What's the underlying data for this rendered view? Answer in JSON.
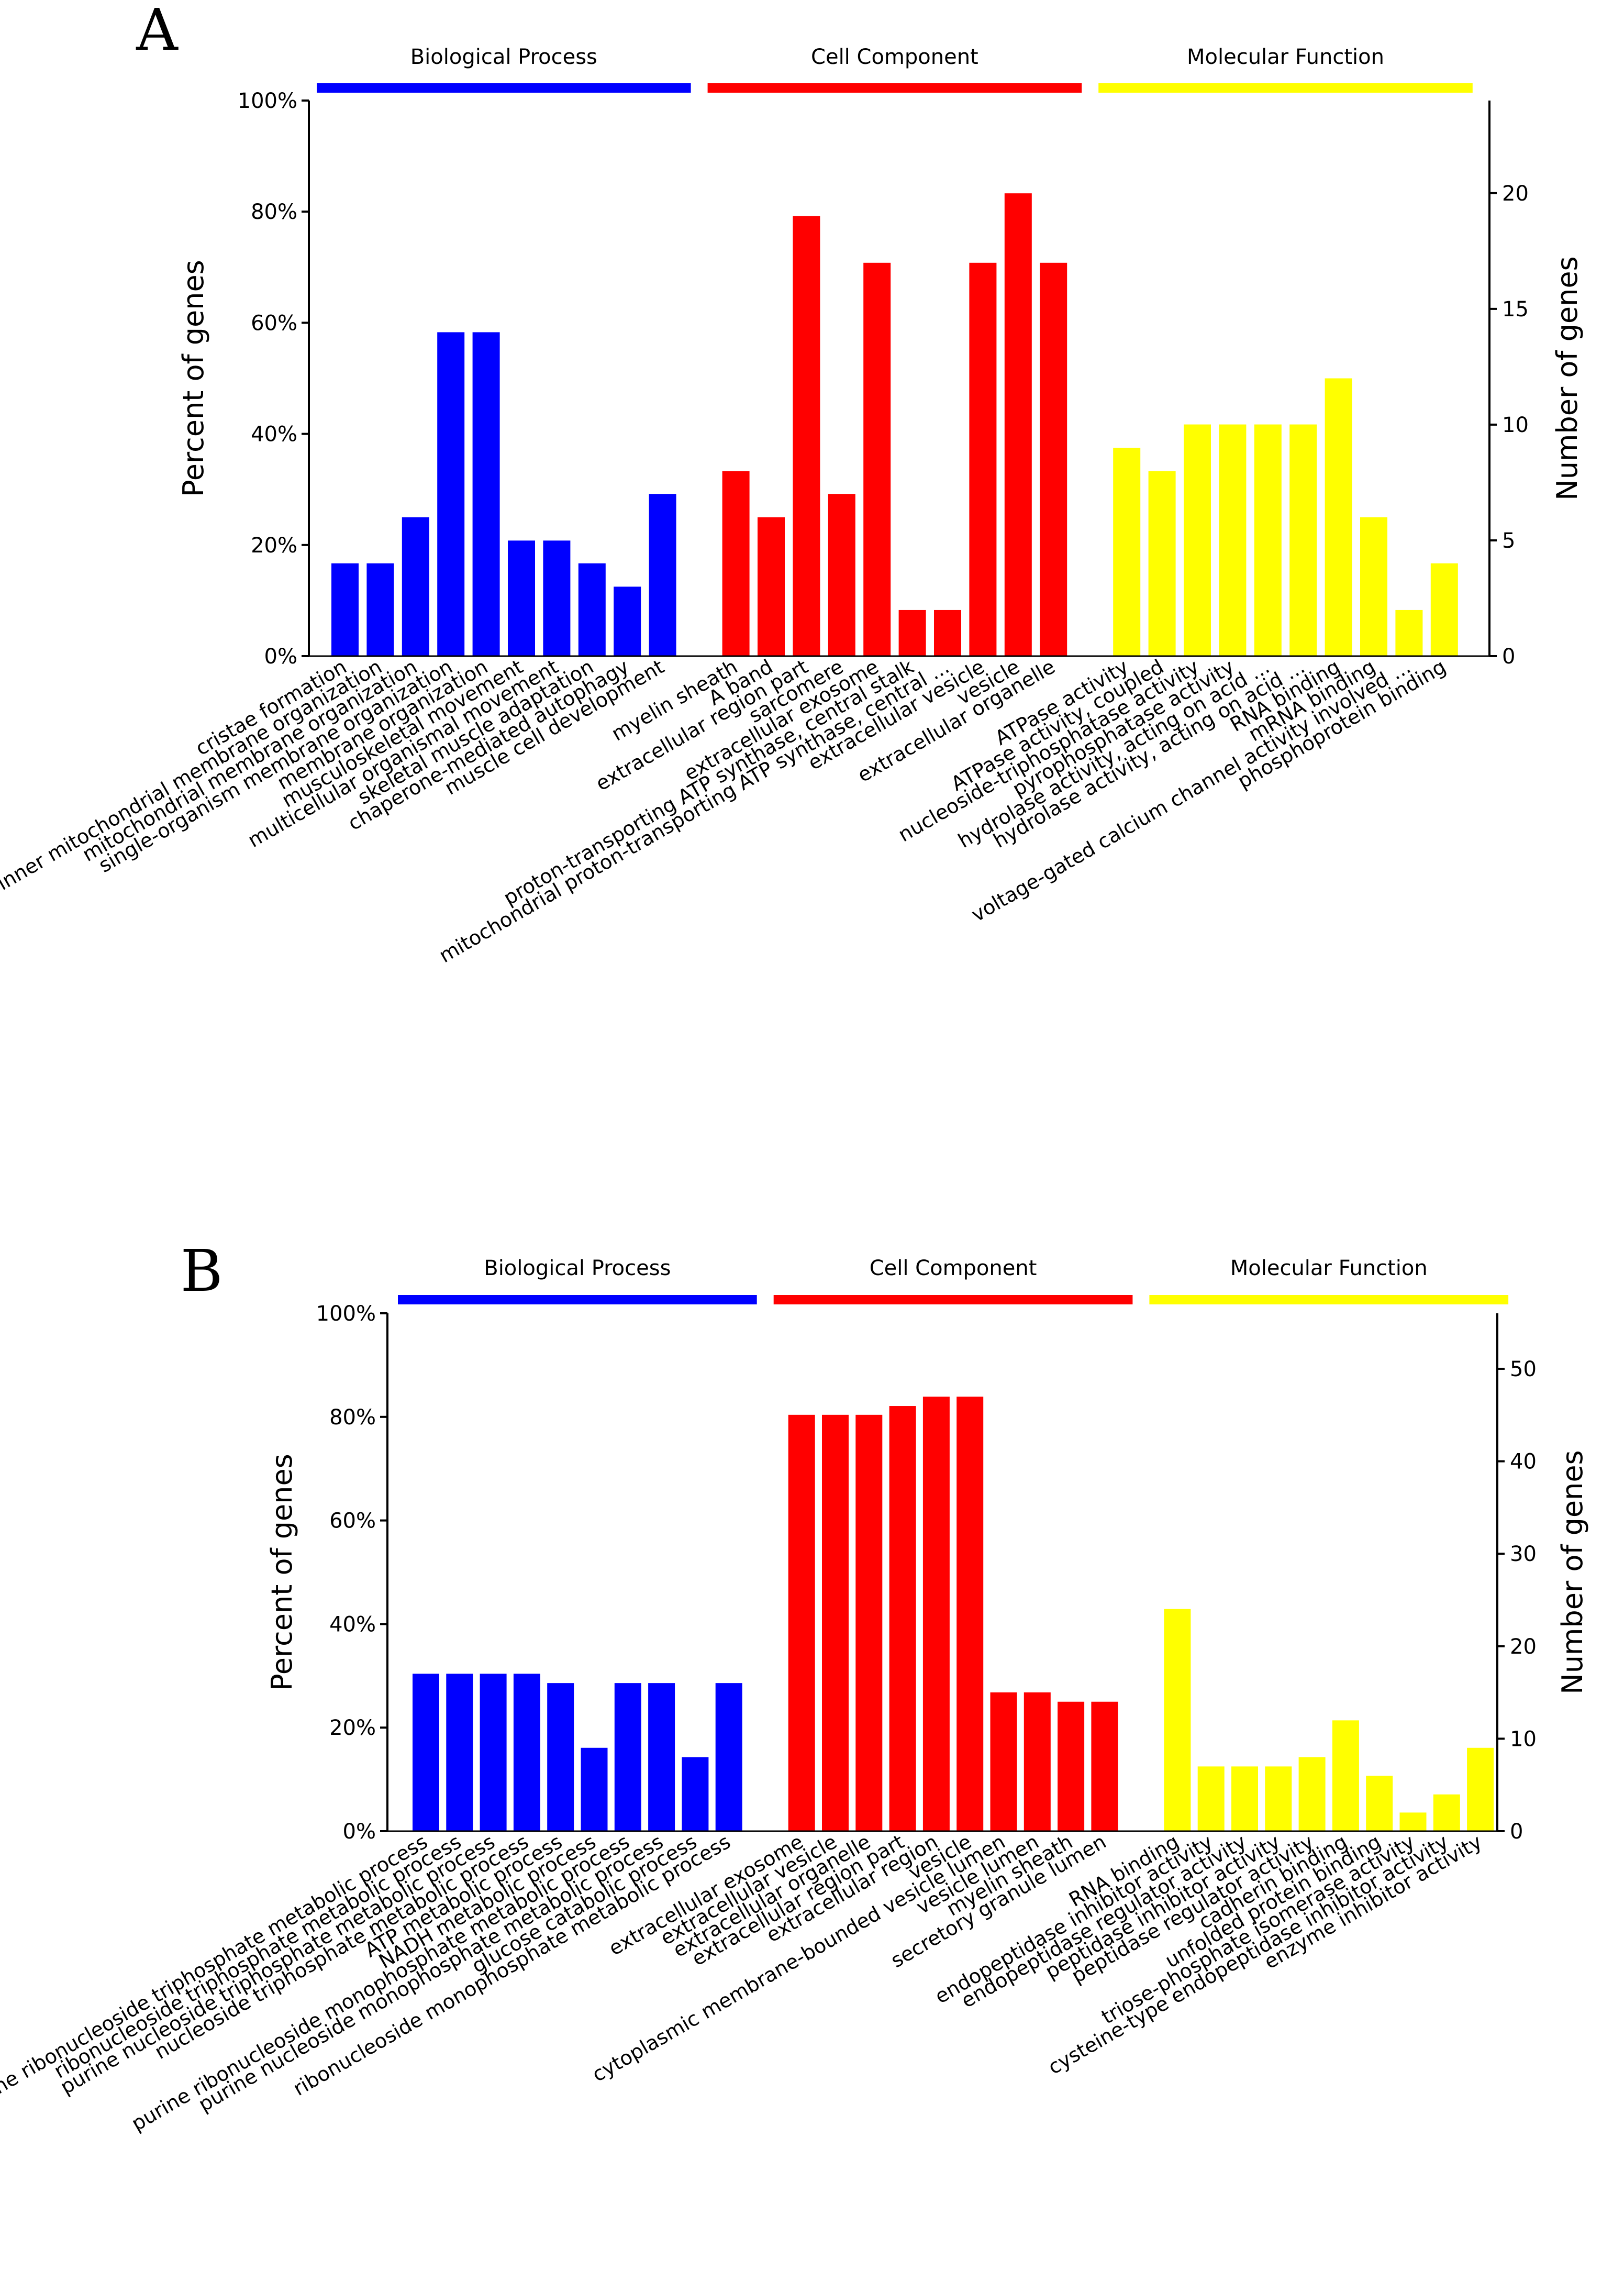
{
  "colors": {
    "biological": "#0000ff",
    "cellular": "#ff0000",
    "molecular": "#ffff00",
    "axis": "#000000"
  },
  "chart_data": [
    {
      "panel": "A",
      "type": "bar",
      "ylabel": "Percent of genes",
      "y2label": "Number of genes",
      "ylim": [
        0,
        100
      ],
      "yticks": [
        "0%",
        "20%",
        "40%",
        "60%",
        "80%",
        "100%"
      ],
      "y2lim": [
        0,
        24
      ],
      "y2ticks": [
        "0",
        "5",
        "10",
        "15",
        "20"
      ],
      "groups": [
        {
          "name": "Biological Process",
          "color": "#0000ff",
          "categories": [
            "cristae formation",
            "inner mitochondrial membrane organization",
            "mitochondrial membrane organization",
            "single-organism membrane organization",
            "membrane organization",
            "musculoskeletal movement",
            "multicellular organismal movement",
            "skeletal muscle adaptation",
            "chaperone-mediated autophagy",
            "muscle cell development"
          ],
          "values": [
            16.7,
            16.7,
            25.0,
            58.3,
            58.3,
            20.8,
            20.8,
            16.7,
            12.5,
            29.2
          ]
        },
        {
          "name": "Cell Component",
          "color": "#ff0000",
          "categories": [
            "myelin sheath",
            "A band",
            "extracellular region part",
            "sarcomere",
            "extracellular exosome",
            "proton-transporting ATP synthase, central stalk",
            "mitochondrial proton-transporting ATP synthase, central ...",
            "extracellular vesicle",
            "vesicle",
            "extracellular organelle"
          ],
          "values": [
            33.3,
            25.0,
            79.2,
            29.2,
            70.8,
            8.3,
            8.3,
            70.8,
            83.3,
            70.8
          ]
        },
        {
          "name": "Molecular Function",
          "color": "#ffff00",
          "categories": [
            "ATPase activity",
            "ATPase activity, coupled",
            "nucleoside-triphosphatase activity",
            "pyrophosphatase activity",
            "hydrolase activity, acting on acid ...",
            "hydrolase activity, acting on acid ...",
            "RNA binding",
            "mRNA binding",
            "voltage-gated calcium channel activity involved ...",
            "phosphoprotein binding"
          ],
          "values": [
            37.5,
            33.3,
            41.7,
            41.7,
            41.7,
            41.7,
            50.0,
            25.0,
            8.3,
            16.7
          ]
        }
      ]
    },
    {
      "panel": "B",
      "type": "bar",
      "ylabel": "Percent of genes",
      "y2label": "Number of genes",
      "ylim": [
        0,
        100
      ],
      "yticks": [
        "0%",
        "20%",
        "40%",
        "60%",
        "80%",
        "100%"
      ],
      "y2lim": [
        0,
        56
      ],
      "y2ticks": [
        "0",
        "10",
        "20",
        "30",
        "40",
        "50"
      ],
      "groups": [
        {
          "name": "Biological Process",
          "color": "#0000ff",
          "categories": [
            "purine ribonucleoside triphosphate metabolic process",
            "ribonucleoside triphosphate metabolic process",
            "purine nucleoside triphosphate metabolic process",
            "nucleoside triphosphate metabolic process",
            "ATP metabolic process",
            "NADH metabolic process",
            "purine ribonucleoside monophosphate metabolic process",
            "purine nucleoside monophosphate metabolic process",
            "glucose catabolic process",
            "ribonucleoside monophosphate metabolic process"
          ],
          "values": [
            30.4,
            30.4,
            30.4,
            30.4,
            28.6,
            16.1,
            28.6,
            28.6,
            14.3,
            28.6
          ]
        },
        {
          "name": "Cell Component",
          "color": "#ff0000",
          "categories": [
            "extracellular exosome",
            "extracellular vesicle",
            "extracellular organelle",
            "extracellular region part",
            "extracellular region",
            "vesicle",
            "cytoplasmic membrane-bounded vesicle lumen",
            "vesicle lumen",
            "myelin sheath",
            "secretory granule lumen"
          ],
          "values": [
            80.4,
            80.4,
            80.4,
            82.1,
            83.9,
            83.9,
            26.8,
            26.8,
            25.0,
            25.0
          ]
        },
        {
          "name": "Molecular Function",
          "color": "#ffff00",
          "categories": [
            "RNA binding",
            "endopeptidase inhibitor activity",
            "endopeptidase regulator activity",
            "peptidase inhibitor activity",
            "peptidase regulator activity",
            "cadherin binding",
            "unfolded protein binding",
            "triose-phosphate isomerase activity",
            "cysteine-type endopeptidase inhibitor activity",
            "enzyme inhibitor activity"
          ],
          "values": [
            42.9,
            12.5,
            12.5,
            12.5,
            14.3,
            21.4,
            10.7,
            3.6,
            7.1,
            16.1
          ]
        }
      ]
    }
  ]
}
